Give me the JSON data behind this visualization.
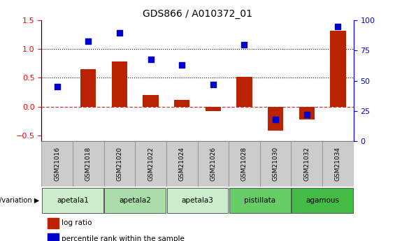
{
  "title": "GDS866 / A010372_01",
  "samples": [
    "GSM21016",
    "GSM21018",
    "GSM21020",
    "GSM21022",
    "GSM21024",
    "GSM21026",
    "GSM21028",
    "GSM21030",
    "GSM21032",
    "GSM21034"
  ],
  "log_ratio": [
    0.0,
    0.65,
    0.78,
    0.2,
    0.12,
    -0.08,
    0.52,
    -0.42,
    -0.22,
    1.32
  ],
  "percentile_rank": [
    45,
    83,
    90,
    68,
    63,
    47,
    80,
    18,
    22,
    95
  ],
  "ylim_left": [
    -0.6,
    1.5
  ],
  "ylim_right": [
    0,
    100
  ],
  "yticks_left": [
    -0.5,
    0.0,
    0.5,
    1.0,
    1.5
  ],
  "yticks_right": [
    0,
    25,
    50,
    75,
    100
  ],
  "hlines": [
    0.5,
    1.0
  ],
  "bar_color": "#BB2200",
  "dot_color": "#0000CC",
  "zero_line_color": "#CC3333",
  "groups": [
    {
      "label": "apetala1",
      "start": 0,
      "end": 2,
      "color": "#CCEECC"
    },
    {
      "label": "apetala2",
      "start": 2,
      "end": 4,
      "color": "#AADDAA"
    },
    {
      "label": "apetala3",
      "start": 4,
      "end": 6,
      "color": "#CCEECC"
    },
    {
      "label": "pistillata",
      "start": 6,
      "end": 8,
      "color": "#66CC66"
    },
    {
      "label": "agamous",
      "start": 8,
      "end": 10,
      "color": "#44BB44"
    }
  ],
  "genotype_label": "genotype/variation",
  "legend_log_ratio": "log ratio",
  "legend_percentile": "percentile rank within the sample",
  "bar_width": 0.5,
  "dot_size": 40,
  "sample_row_color": "#CCCCCC",
  "sample_row_edge": "#888888"
}
